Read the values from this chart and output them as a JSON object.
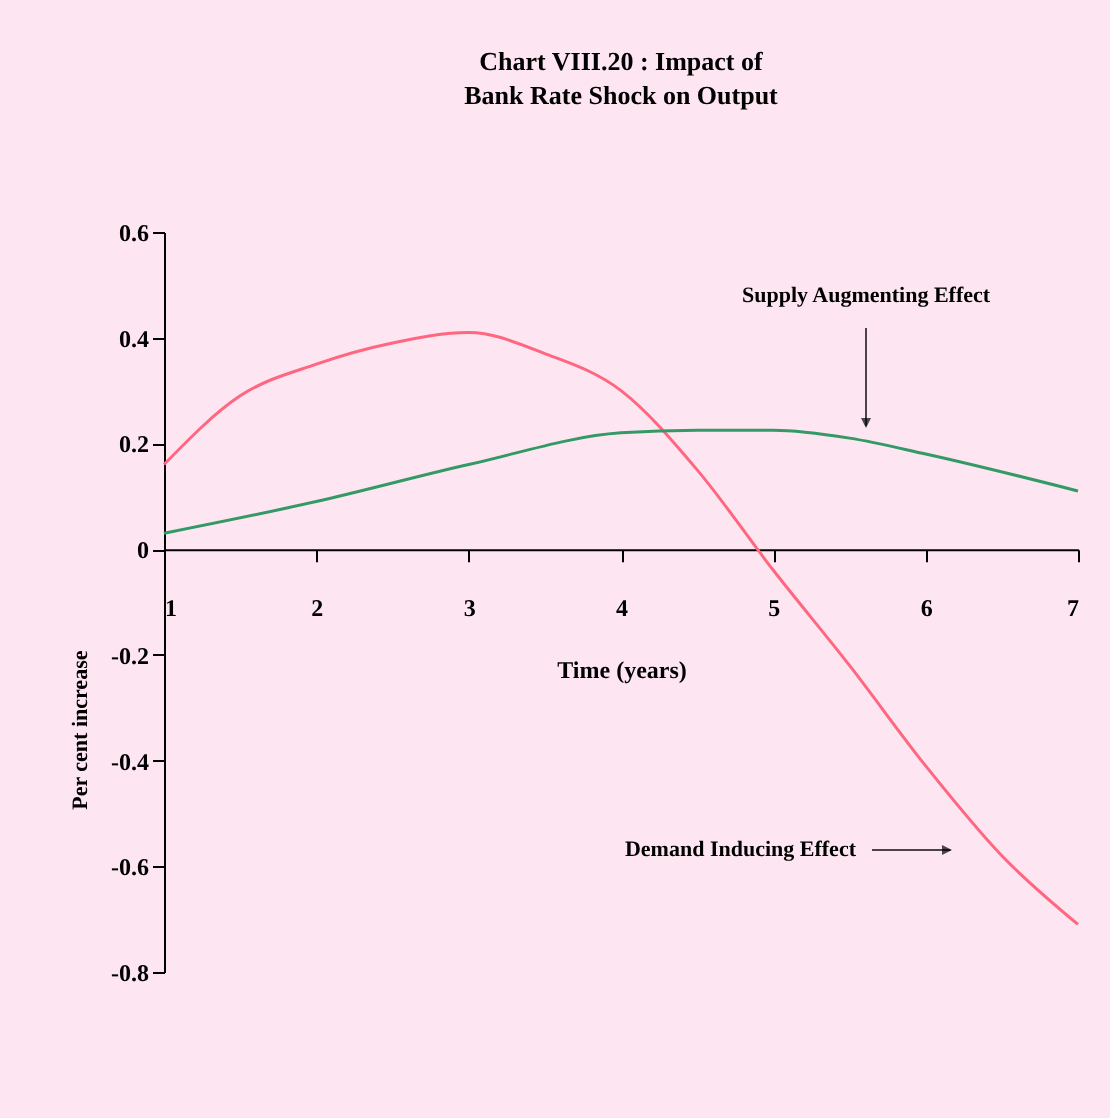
{
  "chart_data": {
    "type": "line",
    "title": "Chart VIII.20 : Impact of Bank Rate Shock on Output",
    "xlabel": "Time (years)",
    "ylabel": "Per cent increase",
    "xlim": [
      1,
      7
    ],
    "xticks": [
      1,
      2,
      3,
      4,
      5,
      6,
      7
    ],
    "ylim": [
      -0.8,
      0.6
    ],
    "yticks": [
      0.6,
      0.4,
      0.2,
      0,
      -0.2,
      -0.4,
      -0.6,
      -0.8
    ],
    "line_style": "solid",
    "series": [
      {
        "color": "#ff6680",
        "x": [
          1,
          1.5,
          2,
          2.5,
          3,
          3.5,
          4,
          4.5,
          5,
          5.5,
          6,
          6.5,
          7
        ],
        "values": [
          0.16,
          0.29,
          0.35,
          0.39,
          0.41,
          0.37,
          0.3,
          0.15,
          -0.04,
          -0.22,
          -0.41,
          -0.58,
          -0.71
        ]
      },
      {
        "color": "#339966",
        "x": [
          1,
          2,
          3,
          4,
          4.5,
          5,
          5.5,
          6,
          7
        ],
        "values": [
          0.03,
          0.09,
          0.16,
          0.22,
          0.225,
          0.225,
          0.21,
          0.18,
          0.11
        ]
      }
    ],
    "annotations": [
      "Supply Augmenting Effect",
      "Demand Inducing Effect"
    ]
  }
}
